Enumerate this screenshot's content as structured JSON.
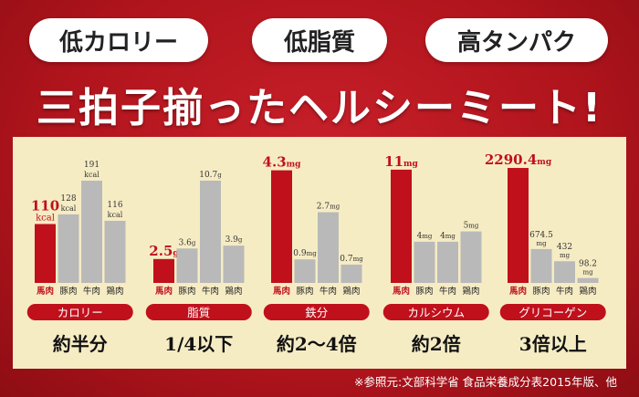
{
  "tags": [
    "低カロリー",
    "低脂質",
    "高タンパク"
  ],
  "headline": "三拍子揃ったヘルシーミート!",
  "footnote": "※参照元:文部科学省 食品栄養成分表2015年版、他",
  "colors": {
    "horse": "#c0101c",
    "other": "#b9b9b9",
    "accent": "#c0101c"
  },
  "chart_data": [
    {
      "type": "bar",
      "categories": [
        "馬肉",
        "豚肉",
        "牛肉",
        "鶏肉"
      ],
      "values": [
        110,
        128,
        191,
        116
      ],
      "value_labels": [
        {
          "num": "110",
          "unit": "kcal"
        },
        {
          "num": "128",
          "unit": "kcal"
        },
        {
          "num": "191",
          "unit": "kcal"
        },
        {
          "num": "116",
          "unit": "kcal"
        }
      ],
      "ylim": [
        0,
        225
      ],
      "nutrient": "カロリー",
      "conclusion": "約半分"
    },
    {
      "type": "bar",
      "categories": [
        "馬肉",
        "豚肉",
        "牛肉",
        "鶏肉"
      ],
      "values": [
        2.5,
        3.6,
        10.7,
        3.9
      ],
      "value_labels": [
        {
          "num": "2.5",
          "unit": "g"
        },
        {
          "num": "3.6",
          "unit": "g"
        },
        {
          "num": "10.7",
          "unit": "g"
        },
        {
          "num": "3.9",
          "unit": "g"
        }
      ],
      "ylim": [
        0,
        12.6
      ],
      "nutrient": "脂質",
      "conclusion": "1/4以下"
    },
    {
      "type": "bar",
      "categories": [
        "馬肉",
        "豚肉",
        "牛肉",
        "鶏肉"
      ],
      "values": [
        4.3,
        0.9,
        2.7,
        0.7
      ],
      "value_labels": [
        {
          "num": "4.3",
          "unit": "mg"
        },
        {
          "num": "0.9",
          "unit": "mg"
        },
        {
          "num": "2.7",
          "unit": "mg"
        },
        {
          "num": "0.7",
          "unit": "mg"
        }
      ],
      "ylim": [
        0,
        4.6
      ],
      "nutrient": "鉄分",
      "conclusion": "約2〜4倍"
    },
    {
      "type": "bar",
      "categories": [
        "馬肉",
        "豚肉",
        "牛肉",
        "鶏肉"
      ],
      "values": [
        11,
        4,
        4,
        5
      ],
      "value_labels": [
        {
          "num": "11",
          "unit": "mg"
        },
        {
          "num": "4",
          "unit": "mg"
        },
        {
          "num": "4",
          "unit": "mg"
        },
        {
          "num": "5",
          "unit": "mg"
        }
      ],
      "ylim": [
        0,
        11.7
      ],
      "nutrient": "カルシウム",
      "conclusion": "約2倍"
    },
    {
      "type": "bar",
      "categories": [
        "馬肉",
        "豚肉",
        "牛肉",
        "鶏肉"
      ],
      "values": [
        2290.4,
        674.5,
        432,
        98.2
      ],
      "value_labels": [
        {
          "num": "2290.4",
          "unit": "mg"
        },
        {
          "num": "674.5",
          "unit": "mg"
        },
        {
          "num": "432",
          "unit": "mg"
        },
        {
          "num": "98.2",
          "unit": "mg"
        }
      ],
      "ylim": [
        0,
        2400
      ],
      "nutrient": "グリコーゲン",
      "conclusion": "3倍以上"
    }
  ]
}
